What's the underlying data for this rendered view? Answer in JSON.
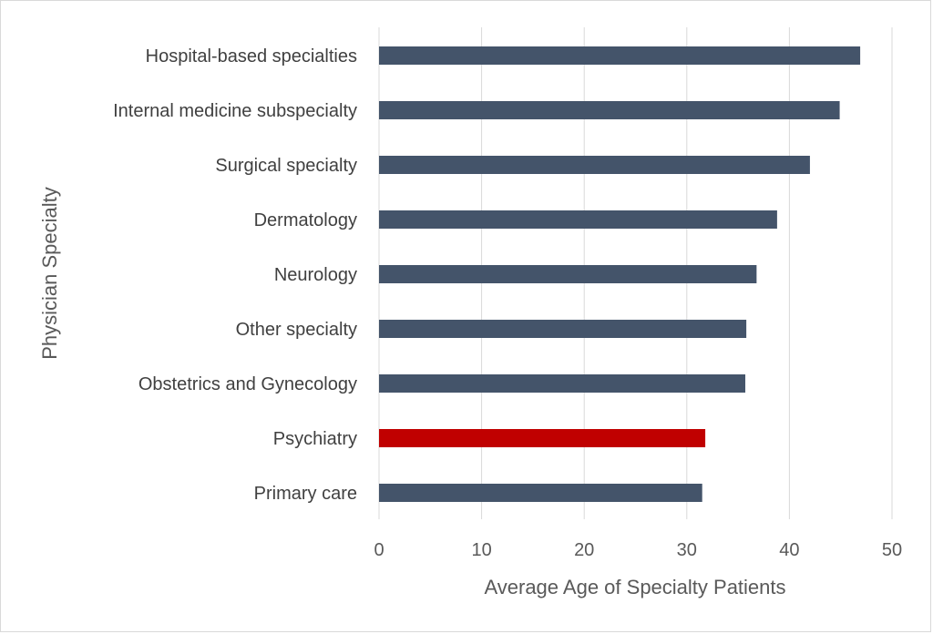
{
  "chart_data": {
    "type": "bar",
    "orientation": "horizontal",
    "title": "",
    "xlabel": "Average Age of Specialty Patients",
    "ylabel": "Physician Specialty",
    "categories": [
      "Hospital-based specialties",
      "Internal medicine subspecialty",
      "Surgical specialty",
      "Dermatology",
      "Neurology",
      "Other specialty",
      "Obstetrics and Gynecology",
      "Psychiatry",
      "Primary care"
    ],
    "values": [
      46.9,
      44.9,
      42.0,
      38.8,
      36.8,
      35.8,
      35.7,
      31.8,
      31.5
    ],
    "highlight_category": "Psychiatry",
    "xlim": [
      0,
      50
    ],
    "xticks": [
      0,
      10,
      20,
      30,
      40,
      50
    ],
    "grid": "vertical",
    "legend": "none",
    "colors": {
      "bar": "#44546a",
      "highlight": "#c00000",
      "grid": "#d9d9d9",
      "text": "#595959"
    }
  }
}
